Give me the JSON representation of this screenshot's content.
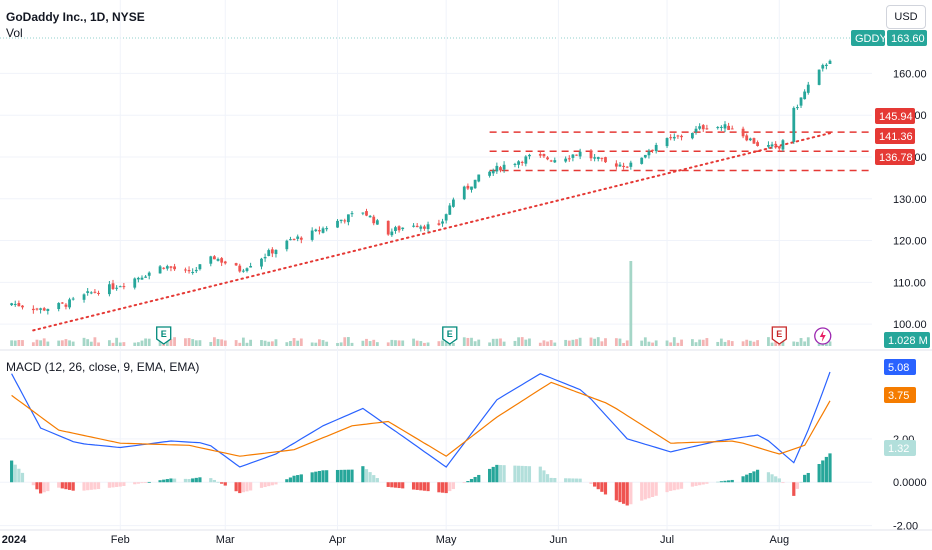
{
  "header": {
    "title": "GoDaddy Inc., 1D, NYSE",
    "vol_label": "Vol",
    "currency": "USD"
  },
  "macd_label": "MACD (12, 26, close, 9, EMA, EMA)",
  "colors": {
    "up": "#26a69a",
    "down": "#ef5350",
    "macd_line": "#2962ff",
    "signal_line": "#f57c00",
    "hist_up_strong": "#26a69a",
    "hist_up_weak": "#b2dfdb",
    "hist_down_strong": "#ef5350",
    "hist_down_weak": "#ffcdd2",
    "level": "#e53935",
    "trend": "#e53935"
  },
  "badges": {
    "symbol": "GDDY",
    "last_price": "163.60",
    "level_1": "145.94",
    "level_2": "141.36",
    "level_3": "136.78",
    "volume": "1.028 M",
    "macd_value": "5.08",
    "signal_value": "3.75",
    "hist_value": "1.32"
  },
  "chart_data": [
    {
      "type": "candlestick",
      "title": "GoDaddy Inc., 1D, NYSE",
      "ylim": [
        95,
        168
      ],
      "y_ticks": [
        "100.00",
        "110.00",
        "120.00",
        "130.00",
        "140.00",
        "150.00",
        "160.00"
      ],
      "x_ticks": [
        "2024",
        "Feb",
        "Mar",
        "Apr",
        "May",
        "Jun",
        "Jul",
        "Aug"
      ],
      "price_levels": [
        145.94,
        141.36,
        136.78
      ],
      "trendline": {
        "from": [
          "2024-01-03",
          98.5
        ],
        "to": [
          "2024-08-15",
          145.7
        ]
      },
      "earnings_markers": [
        "Feb",
        "May",
        "Aug"
      ],
      "close_path": [
        [
          "2024-01-02",
          105.0
        ],
        [
          "2024-01-10",
          103.5
        ],
        [
          "2024-01-17",
          104.8
        ],
        [
          "2024-01-24",
          107.5
        ],
        [
          "2024-02-01",
          109.5
        ],
        [
          "2024-02-08",
          112.0
        ],
        [
          "2024-02-13",
          114.0
        ],
        [
          "2024-02-20",
          112.0
        ],
        [
          "2024-02-27",
          116.0
        ],
        [
          "2024-03-05",
          113.0
        ],
        [
          "2024-03-12",
          116.5
        ],
        [
          "2024-03-19",
          120.0
        ],
        [
          "2024-03-26",
          122.0
        ],
        [
          "2024-04-02",
          125.0
        ],
        [
          "2024-04-08",
          127.0
        ],
        [
          "2024-04-15",
          122.0
        ],
        [
          "2024-04-22",
          124.0
        ],
        [
          "2024-04-29",
          123.0
        ],
        [
          "2024-05-03",
          130.0
        ],
        [
          "2024-05-10",
          135.0
        ],
        [
          "2024-05-17",
          138.0
        ],
        [
          "2024-05-24",
          140.0
        ],
        [
          "2024-05-31",
          139.5
        ],
        [
          "2024-06-07",
          141.0
        ],
        [
          "2024-06-14",
          138.5
        ],
        [
          "2024-06-21",
          138.0
        ],
        [
          "2024-06-28",
          143.0
        ],
        [
          "2024-07-05",
          145.0
        ],
        [
          "2024-07-12",
          147.5
        ],
        [
          "2024-07-19",
          147.0
        ],
        [
          "2024-07-26",
          143.0
        ],
        [
          "2024-08-01",
          142.0
        ],
        [
          "2024-08-05",
          151.0
        ],
        [
          "2024-08-09",
          157.0
        ],
        [
          "2024-08-15",
          163.6
        ]
      ]
    },
    {
      "type": "bar",
      "title": "Vol",
      "note_max": "2024-06-21",
      "last_value": "1.028 M"
    },
    {
      "type": "line",
      "title": "MACD (12, 26, close, 9, EMA, EMA)",
      "ylim": [
        -2.2,
        6.0
      ],
      "y_ticks": [
        "-2.00",
        "0.0000",
        "2.00"
      ],
      "series": [
        {
          "name": "MACD",
          "path": [
            [
              "2024-01-02",
              5.0
            ],
            [
              "2024-01-10",
              2.5
            ],
            [
              "2024-01-20",
              1.8
            ],
            [
              "2024-02-01",
              1.6
            ],
            [
              "2024-02-15",
              1.9
            ],
            [
              "2024-02-25",
              1.8
            ],
            [
              "2024-03-05",
              0.7
            ],
            [
              "2024-03-15",
              1.3
            ],
            [
              "2024-03-28",
              2.6
            ],
            [
              "2024-04-08",
              3.4
            ],
            [
              "2024-04-20",
              2.0
            ],
            [
              "2024-05-01",
              0.7
            ],
            [
              "2024-05-15",
              3.8
            ],
            [
              "2024-05-27",
              5.0
            ],
            [
              "2024-06-08",
              4.2
            ],
            [
              "2024-06-20",
              2.0
            ],
            [
              "2024-07-02",
              1.4
            ],
            [
              "2024-07-15",
              1.9
            ],
            [
              "2024-07-27",
              2.2
            ],
            [
              "2024-08-05",
              0.9
            ],
            [
              "2024-08-10",
              2.8
            ],
            [
              "2024-08-15",
              5.08
            ]
          ]
        },
        {
          "name": "Signal",
          "path": [
            [
              "2024-01-02",
              4.0
            ],
            [
              "2024-01-15",
              2.4
            ],
            [
              "2024-02-01",
              1.8
            ],
            [
              "2024-02-20",
              1.7
            ],
            [
              "2024-03-05",
              1.2
            ],
            [
              "2024-03-20",
              1.5
            ],
            [
              "2024-04-05",
              2.6
            ],
            [
              "2024-04-15",
              2.8
            ],
            [
              "2024-05-01",
              1.2
            ],
            [
              "2024-05-15",
              3.0
            ],
            [
              "2024-05-30",
              4.6
            ],
            [
              "2024-06-15",
              3.6
            ],
            [
              "2024-07-02",
              1.8
            ],
            [
              "2024-07-20",
              1.9
            ],
            [
              "2024-08-01",
              1.3
            ],
            [
              "2024-08-08",
              1.7
            ],
            [
              "2024-08-15",
              3.75
            ]
          ]
        }
      ]
    }
  ]
}
